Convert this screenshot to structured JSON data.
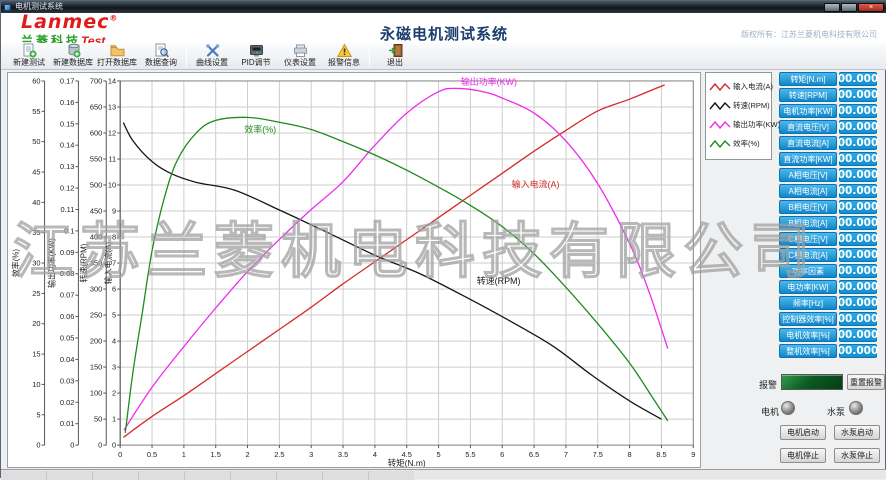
{
  "window": {
    "title": "电机测试系统"
  },
  "header": {
    "logo": {
      "name": "Lanmec",
      "reg": "®",
      "sub_cn": "兰菱科技",
      "sub_en": "Test"
    },
    "title": "永磁电机测试系统",
    "copyright": "版权所有：江苏兰菱机电科技有限公司"
  },
  "toolbar": {
    "items": [
      {
        "label": "新建测试",
        "icon": "new-test"
      },
      {
        "label": "新建数据库",
        "icon": "new-db"
      },
      {
        "label": "打开数据库",
        "icon": "open-db"
      },
      {
        "label": "数据查询",
        "icon": "query"
      },
      {
        "label": "曲线设置",
        "icon": "curve"
      },
      {
        "label": "PID调节",
        "icon": "pid"
      },
      {
        "label": "仪表设置",
        "icon": "meter"
      },
      {
        "label": "报警信息",
        "icon": "alarm"
      },
      {
        "label": "退出",
        "icon": "exit"
      }
    ],
    "separators_after": [
      3,
      7
    ]
  },
  "watermark": "江苏兰菱机电科技有限公司",
  "chart_data": {
    "type": "line",
    "xlabel": "转矩(N.m)",
    "x_axis": {
      "min": 0,
      "max": 9,
      "step": 0.5
    },
    "grid": true,
    "y_axes": [
      {
        "title": "效率(%)",
        "min": 0,
        "max": 60,
        "step": 5
      },
      {
        "title": "输出功率(KW)",
        "min": 0,
        "max": 0.17,
        "step": 0.01
      },
      {
        "title": "转速(RPM)",
        "min": 0,
        "max": 700,
        "step": 50
      },
      {
        "title": "输入电流(A)",
        "min": 0,
        "max": 14,
        "step": 1
      }
    ],
    "series": [
      {
        "name": "输入电流(A)",
        "color": "#d42a2a",
        "axis": 3,
        "label_at": [
          6.15,
          9.9
        ],
        "points": [
          [
            0.05,
            0.3
          ],
          [
            0.5,
            1.1
          ],
          [
            1,
            1.9
          ],
          [
            1.5,
            2.75
          ],
          [
            2,
            3.6
          ],
          [
            2.5,
            4.45
          ],
          [
            3,
            5.3
          ],
          [
            3.5,
            6.2
          ],
          [
            4,
            7.05
          ],
          [
            4.5,
            7.9
          ],
          [
            5,
            8.75
          ],
          [
            5.5,
            9.6
          ],
          [
            6,
            10.45
          ],
          [
            6.5,
            11.3
          ],
          [
            7,
            12.1
          ],
          [
            7.5,
            12.85
          ],
          [
            8,
            13.3
          ],
          [
            8.55,
            13.85
          ]
        ]
      },
      {
        "name": "转速(RPM)",
        "color": "#151515",
        "axis": 2,
        "label_at": [
          5.6,
          310
        ],
        "points": [
          [
            0.05,
            620
          ],
          [
            0.2,
            585
          ],
          [
            0.5,
            545
          ],
          [
            0.8,
            522
          ],
          [
            1.2,
            505
          ],
          [
            1.8,
            490
          ],
          [
            2.5,
            452
          ],
          [
            3.2,
            412
          ],
          [
            4,
            365
          ],
          [
            4.7,
            330
          ],
          [
            5.5,
            280
          ],
          [
            6.1,
            240
          ],
          [
            6.8,
            190
          ],
          [
            7.4,
            135
          ],
          [
            8,
            85
          ],
          [
            8.5,
            50
          ]
        ]
      },
      {
        "name": "输出功率(KW)",
        "color": "#ee2bee",
        "axis": 1,
        "label_at": [
          5.35,
          0.168
        ],
        "points": [
          [
            0.06,
            0.007
          ],
          [
            0.5,
            0.027
          ],
          [
            1,
            0.046
          ],
          [
            1.5,
            0.064
          ],
          [
            2,
            0.081
          ],
          [
            2.5,
            0.096
          ],
          [
            3,
            0.11
          ],
          [
            3.5,
            0.123
          ],
          [
            4,
            0.14
          ],
          [
            4.5,
            0.155
          ],
          [
            5,
            0.165
          ],
          [
            5.3,
            0.1665
          ],
          [
            5.7,
            0.165
          ],
          [
            6,
            0.162
          ],
          [
            6.5,
            0.155
          ],
          [
            7,
            0.142
          ],
          [
            7.5,
            0.122
          ],
          [
            8,
            0.094
          ],
          [
            8.3,
            0.072
          ],
          [
            8.6,
            0.045
          ]
        ]
      },
      {
        "name": "效率(%)",
        "color": "#1e8b1e",
        "axis": 0,
        "label_at": [
          1.95,
          51.5
        ],
        "points": [
          [
            0.08,
            2
          ],
          [
            0.2,
            12
          ],
          [
            0.35,
            22
          ],
          [
            0.5,
            32
          ],
          [
            0.7,
            41
          ],
          [
            0.9,
            47
          ],
          [
            1.2,
            51.5
          ],
          [
            1.5,
            53.5
          ],
          [
            2,
            54
          ],
          [
            2.5,
            53.2
          ],
          [
            3,
            52
          ],
          [
            3.5,
            50
          ],
          [
            4,
            47.8
          ],
          [
            4.5,
            45.3
          ],
          [
            5,
            42.5
          ],
          [
            5.5,
            39.5
          ],
          [
            6,
            36
          ],
          [
            6.5,
            31.5
          ],
          [
            7,
            26
          ],
          [
            7.5,
            20
          ],
          [
            8,
            13.5
          ],
          [
            8.35,
            8
          ],
          [
            8.6,
            4
          ]
        ]
      }
    ]
  },
  "readouts": [
    {
      "label": "转矩[N.m]",
      "value": "00.000"
    },
    {
      "label": "转速[RPM]",
      "value": "00.000"
    },
    {
      "label": "电机功率[KW]",
      "value": "00.000"
    },
    {
      "label": "直流电压[V]",
      "value": "00.000"
    },
    {
      "label": "直流电流[A]",
      "value": "00.000"
    },
    {
      "label": "直流功率[KW]",
      "value": "00.000"
    },
    {
      "label": "A相电压[V]",
      "value": "00.000"
    },
    {
      "label": "A相电流[A]",
      "value": "00.000"
    },
    {
      "label": "B相电压[V]",
      "value": "00.000"
    },
    {
      "label": "B相电流[A]",
      "value": "00.000"
    },
    {
      "label": "C相电压[V]",
      "value": "00.000"
    },
    {
      "label": "C相电流[A]",
      "value": "00.000"
    },
    {
      "label": "功率因素",
      "value": "00.000"
    },
    {
      "label": "电功率[KW]",
      "value": "00.000"
    },
    {
      "label": "频率[Hz]",
      "value": "00.000"
    },
    {
      "label": "控制器效率[%]",
      "value": "00.000"
    },
    {
      "label": "电机效率[%]",
      "value": "00.000"
    },
    {
      "label": "整机效率[%]",
      "value": "00.000"
    }
  ],
  "alarm": {
    "label": "报警",
    "reset_label": "重置报警"
  },
  "indicators": {
    "motor": "电机",
    "pump": "水泵"
  },
  "controls": {
    "buttons": [
      "电机启动",
      "水泵启动",
      "电机停止",
      "水泵停止"
    ]
  }
}
